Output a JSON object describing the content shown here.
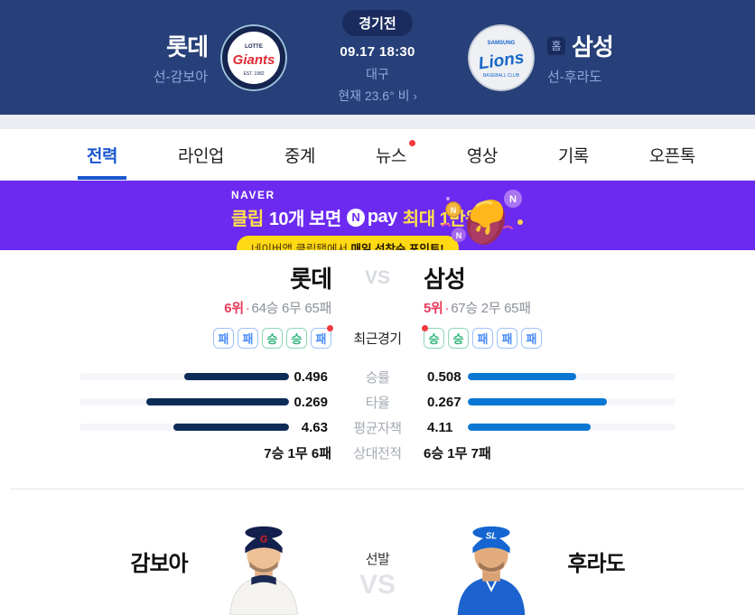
{
  "header": {
    "status": "경기전",
    "datetime": "09.17 18:30",
    "stadium": "대구",
    "weather": "현재 23.6° 비",
    "away": {
      "name": "롯데",
      "starter": "선-감보아",
      "logo": "lotte-giants"
    },
    "home": {
      "name": "삼성",
      "starter": "선-후라도",
      "home_badge": "홈",
      "logo": "samsung-lions"
    }
  },
  "tabs": [
    {
      "label": "전력",
      "active": true
    },
    {
      "label": "라인업"
    },
    {
      "label": "중계"
    },
    {
      "label": "뉴스",
      "dot": true
    },
    {
      "label": "영상"
    },
    {
      "label": "기록"
    },
    {
      "label": "오픈톡"
    }
  ],
  "banner": {
    "brand": "NAVER",
    "title_clip": "클립",
    "title_mid": "10개 보면",
    "npay_n": "N",
    "npay_word": "pay",
    "title_tail": "최대 1만원",
    "pill_normal": "네이버앱 클립탭에서 ",
    "pill_bold": "매일 선착순 포인트!"
  },
  "comparison": {
    "vs": "VS",
    "recent_label": "최근경기",
    "win_char": "승",
    "away": {
      "name": "롯데",
      "rank": "6위",
      "record": "64승 6무 65패",
      "recent": [
        "패",
        "패",
        "승",
        "승",
        "패"
      ],
      "latest_index": 4
    },
    "home": {
      "name": "삼성",
      "rank": "5위",
      "record": "67승 2무 65패",
      "recent": [
        "승",
        "승",
        "패",
        "패",
        "패"
      ],
      "latest_index": 0
    },
    "stats": [
      {
        "label": "승률",
        "away": "0.496",
        "home": "0.508",
        "away_pct": 50,
        "home_pct": 52
      },
      {
        "label": "타율",
        "away": "0.269",
        "home": "0.267",
        "away_pct": 68,
        "home_pct": 67
      },
      {
        "label": "평균자책",
        "away": "4.63",
        "home": "4.11",
        "away_pct": 55,
        "home_pct": 59
      }
    ],
    "head_to_head": {
      "label": "상대전적",
      "away": "7승 1무 6패",
      "home": "6승 1무 7패"
    }
  },
  "pitchers": {
    "label": "선발",
    "vs": "VS",
    "away": "감보아",
    "home": "후라도"
  },
  "icons": {
    "chevron_right": "›",
    "middot": "·"
  },
  "colors": {
    "header_bg": "#274079",
    "accent_blue": "#1a57cf",
    "banner_bg": "#6c2af1",
    "banner_yellow": "#ffe14a",
    "pill_bg": "#ffd913",
    "win_green": "#2fb57a",
    "loss_blue": "#4a8cf7",
    "rank_red": "#ea3a5b",
    "away_bar": "#0e2c58",
    "home_bar": "#0a77d3",
    "red_dot": "#f43a3c"
  }
}
